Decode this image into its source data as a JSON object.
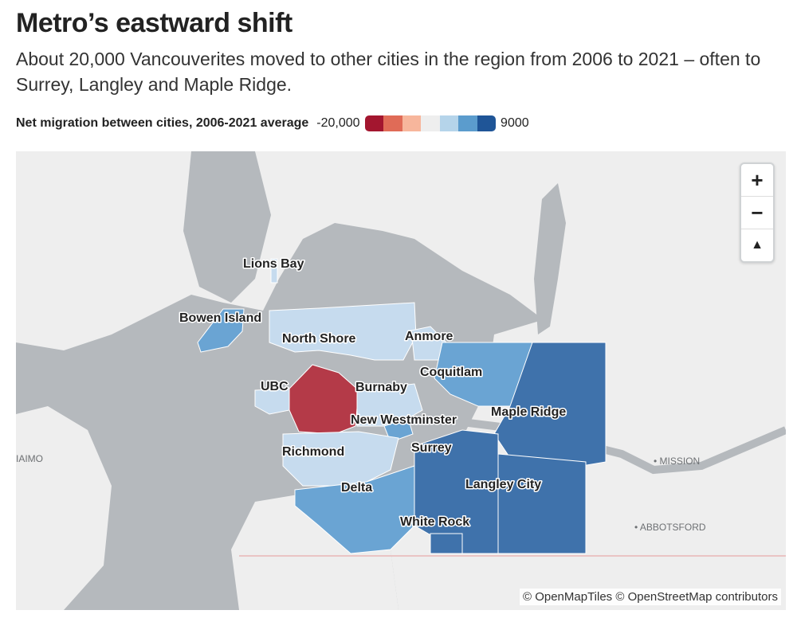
{
  "title": "Metro’s eastward shift",
  "subtitle": "About 20,000 Vancouverites moved to other cities in the region from 2006 to 2021 – often to Surrey, Langley and Maple Ridge.",
  "legend": {
    "label": "Net migration between cities, 2006-2021 average",
    "min": "-20,000",
    "max": "9000",
    "colors": [
      "#a3162f",
      "#e06b57",
      "#f7b69c",
      "#eeeeee",
      "#b5d4ea",
      "#5b9ccd",
      "#1f5597"
    ]
  },
  "map": {
    "cities": {
      "lions_bay": "Lions Bay",
      "bowen_island": "Bowen Island",
      "north_shore": "North Shore",
      "anmore": "Anmore",
      "coquitlam": "Coquitlam",
      "ubc": "UBC",
      "burnaby": "Burnaby",
      "new_westminster": "New Westminster",
      "maple_ridge": "Maple Ridge",
      "richmond": "Richmond",
      "surrey": "Surrey",
      "langley_city": "Langley City",
      "delta": "Delta",
      "white_rock": "White Rock"
    },
    "places": {
      "nanaimo": "IAIMO",
      "mission": "• MISSION",
      "abbotsford": "• ABBOTSFORD"
    },
    "colors": {
      "land": "#eeeeee",
      "water": "#b5b9bd",
      "vancouver": "#b43a48",
      "light_blue": "#c6dbee",
      "mid_blue": "#6aa4d3",
      "dark_blue": "#3f72ab"
    }
  },
  "zoom": {
    "in": "+",
    "out": "−",
    "compass": "▲"
  },
  "attribution": "© OpenMapTiles © OpenStreetMap contributors"
}
